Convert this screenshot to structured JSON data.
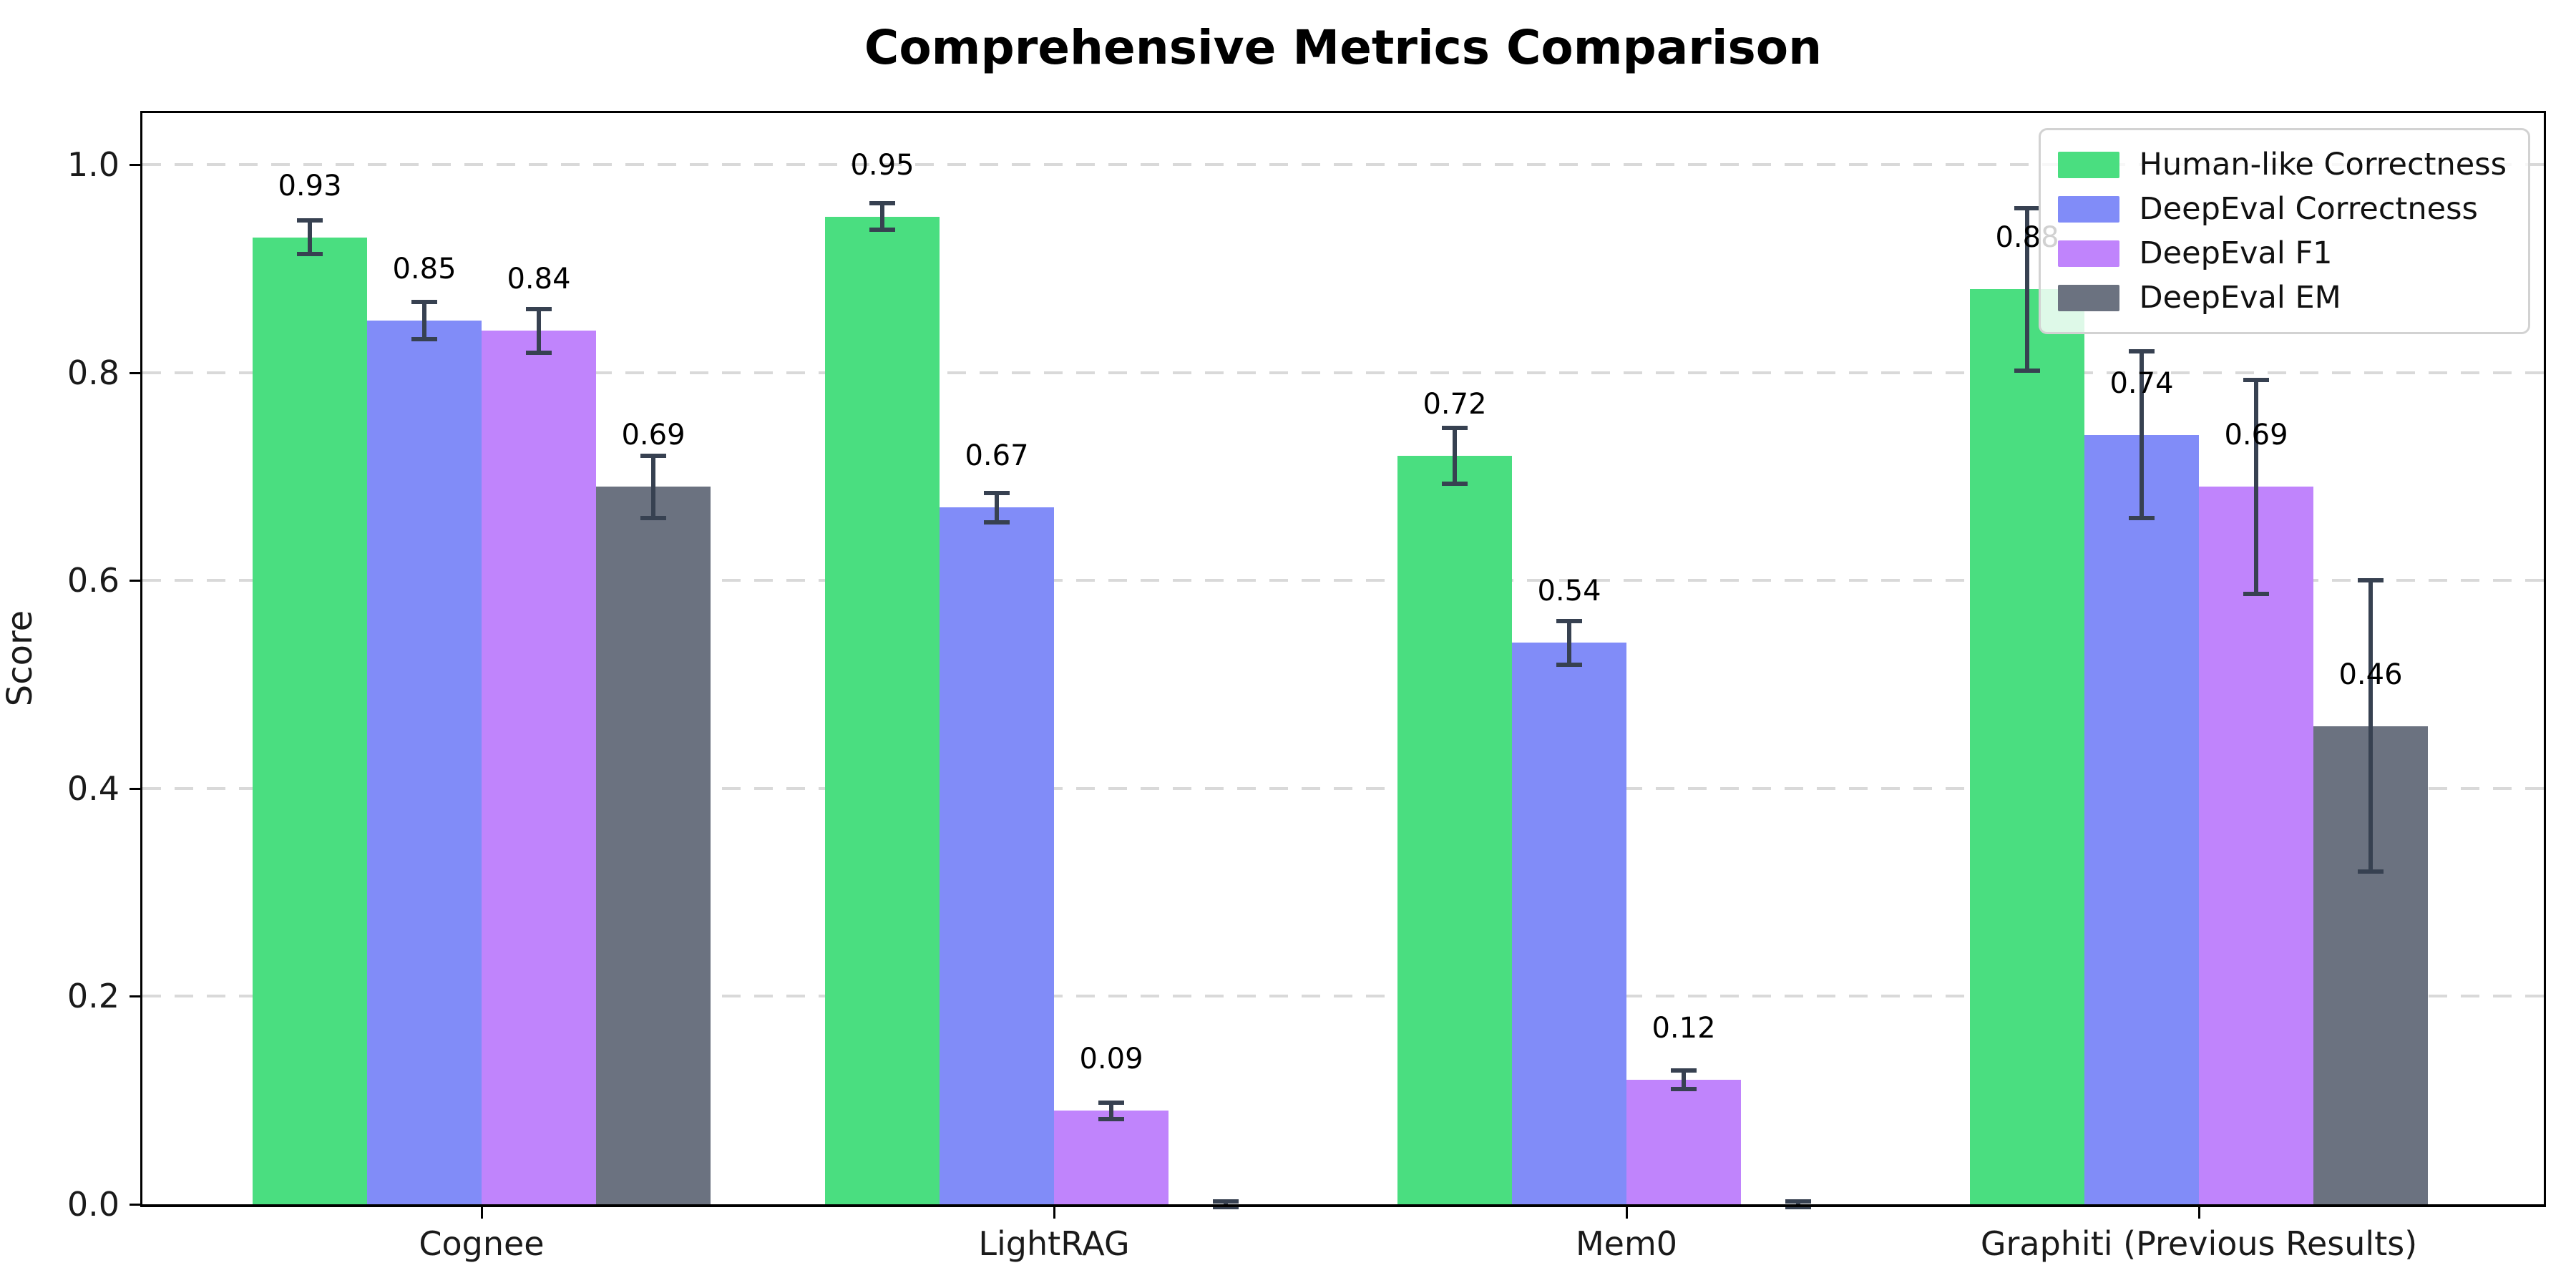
{
  "figure": {
    "title": "Comprehensive Metrics Comparison",
    "ylabel": "Score"
  },
  "chart_data": {
    "type": "bar",
    "title": "Comprehensive Metrics Comparison",
    "xlabel": "",
    "ylabel": "Score",
    "categories": [
      "Cognee",
      "LightRAG",
      "Mem0",
      "Graphiti (Previous Results)"
    ],
    "series": [
      {
        "name": "Human-like Correctness",
        "color": "#4ade80",
        "values": [
          0.93,
          0.95,
          0.72,
          0.88
        ],
        "errors": [
          0.016,
          0.013,
          0.027,
          0.078
        ],
        "value_labels": [
          "0.93",
          "0.95",
          "0.72",
          "0.88"
        ]
      },
      {
        "name": "DeepEval Correctness",
        "color": "#818cf8",
        "values": [
          0.85,
          0.67,
          0.54,
          0.74
        ],
        "errors": [
          0.018,
          0.014,
          0.021,
          0.08
        ],
        "value_labels": [
          "0.85",
          "0.67",
          "0.54",
          "0.74"
        ]
      },
      {
        "name": "DeepEval F1",
        "color": "#c084fc",
        "values": [
          0.84,
          0.09,
          0.12,
          0.69
        ],
        "errors": [
          0.021,
          0.008,
          0.009,
          0.103
        ],
        "value_labels": [
          "0.84",
          "0.09",
          "0.12",
          "0.69"
        ]
      },
      {
        "name": "DeepEval EM",
        "color": "#6b7280",
        "values": [
          0.69,
          0.0,
          0.0,
          0.46
        ],
        "errors": [
          0.03,
          0.003,
          0.003,
          0.14
        ],
        "value_labels": [
          "0.69",
          "",
          "",
          "0.46"
        ]
      }
    ],
    "ylim": [
      0,
      1.05
    ],
    "yticks": [
      {
        "value": 0.0,
        "label": "0.0"
      },
      {
        "value": 0.2,
        "label": "0.2"
      },
      {
        "value": 0.4,
        "label": "0.4"
      },
      {
        "value": 0.6,
        "label": "0.6"
      },
      {
        "value": 0.8,
        "label": "0.8"
      },
      {
        "value": 1.0,
        "label": "1.0"
      }
    ],
    "grid": {
      "axis": "y",
      "style": "dashed",
      "color": "#d9d9d9"
    },
    "legend": {
      "position": "upper right"
    },
    "errorbar_color": "#374151",
    "bar_group_layout": {
      "bars_per_group": 4,
      "bar_width_fraction": 0.2
    }
  }
}
